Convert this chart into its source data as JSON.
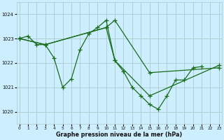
{
  "xlabel": "Graphe pression niveau de la mer (hPa)",
  "bg_color": "#cceeff",
  "grid_color": "#aacccc",
  "line_color": "#1a6b1a",
  "marker": "+",
  "markersize": 4,
  "linewidth": 0.9,
  "ylim": [
    1019.5,
    1024.5
  ],
  "xlim": [
    -0.3,
    23.3
  ],
  "yticks": [
    1020,
    1021,
    1022,
    1023,
    1024
  ],
  "xticks": [
    0,
    1,
    2,
    3,
    4,
    5,
    6,
    7,
    8,
    9,
    10,
    11,
    12,
    13,
    14,
    15,
    16,
    17,
    18,
    19,
    20,
    21,
    22,
    23
  ],
  "series": [
    {
      "x": [
        0,
        1,
        2,
        3,
        4,
        5,
        6,
        7,
        8,
        9,
        10,
        11,
        12,
        13,
        14,
        15,
        16,
        17,
        18,
        19,
        20,
        21
      ],
      "y": [
        1023.0,
        1023.1,
        1022.75,
        1022.75,
        1022.2,
        1021.0,
        1021.35,
        1022.55,
        1023.2,
        1023.45,
        1023.75,
        1022.1,
        1021.65,
        1021.0,
        1020.65,
        1020.3,
        1020.1,
        1020.65,
        1021.3,
        1021.3,
        1021.8,
        1021.85
      ]
    },
    {
      "x": [
        0,
        3,
        10,
        11,
        15,
        23
      ],
      "y": [
        1023.0,
        1022.75,
        1023.45,
        1023.75,
        1021.6,
        1021.8
      ]
    },
    {
      "x": [
        0,
        3,
        10,
        11,
        15,
        23
      ],
      "y": [
        1023.0,
        1022.75,
        1023.45,
        1022.1,
        1020.65,
        1021.9
      ]
    }
  ]
}
